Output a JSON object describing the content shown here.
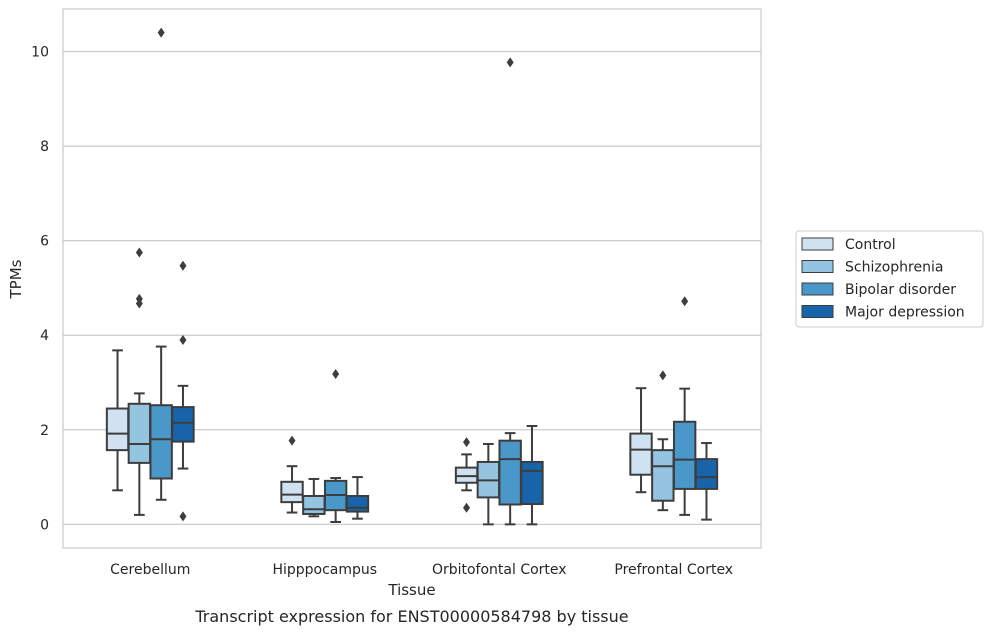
{
  "chart_data": {
    "type": "box",
    "title": "",
    "caption": "Transcript expression for ENST00000584798 by tissue",
    "xlabel": "Tissue",
    "ylabel": "TPMs",
    "ylim": [
      -0.5,
      10.9
    ],
    "yticks": [
      0,
      2,
      4,
      6,
      8,
      10
    ],
    "grid": "horizontal",
    "legend_position": "right",
    "categories": [
      "Cerebellum",
      "Hipppocampus",
      "Orbitofontal Cortex",
      "Prefrontal Cortex"
    ],
    "series": [
      {
        "name": "Control",
        "color": "#d0e1f2",
        "boxes": [
          {
            "whislo": 0.72,
            "q1": 1.57,
            "med": 1.92,
            "q3": 2.45,
            "whishi": 3.68,
            "fliers": []
          },
          {
            "whislo": 0.25,
            "q1": 0.47,
            "med": 0.63,
            "q3": 0.9,
            "whishi": 1.23,
            "fliers": [
              1.77
            ]
          },
          {
            "whislo": 0.72,
            "q1": 0.88,
            "med": 1.02,
            "q3": 1.2,
            "whishi": 1.48,
            "fliers": [
              1.74,
              0.35
            ]
          },
          {
            "whislo": 0.68,
            "q1": 1.05,
            "med": 1.58,
            "q3": 1.92,
            "whishi": 2.88,
            "fliers": []
          }
        ]
      },
      {
        "name": "Schizophrenia",
        "color": "#94c4df",
        "boxes": [
          {
            "whislo": 0.2,
            "q1": 1.3,
            "med": 1.7,
            "q3": 2.55,
            "whishi": 2.77,
            "fliers": [
              5.75,
              4.77,
              4.67
            ]
          },
          {
            "whislo": 0.17,
            "q1": 0.22,
            "med": 0.32,
            "q3": 0.6,
            "whishi": 0.96,
            "fliers": []
          },
          {
            "whislo": 0.0,
            "q1": 0.57,
            "med": 0.93,
            "q3": 1.32,
            "whishi": 1.7,
            "fliers": []
          },
          {
            "whislo": 0.3,
            "q1": 0.5,
            "med": 1.23,
            "q3": 1.57,
            "whishi": 1.8,
            "fliers": [
              3.15
            ]
          }
        ]
      },
      {
        "name": "Bipolar disorder",
        "color": "#4a98c9",
        "boxes": [
          {
            "whislo": 0.52,
            "q1": 0.97,
            "med": 1.8,
            "q3": 2.52,
            "whishi": 3.76,
            "fliers": [
              10.4
            ]
          },
          {
            "whislo": 0.05,
            "q1": 0.3,
            "med": 0.62,
            "q3": 0.92,
            "whishi": 0.98,
            "fliers": [
              3.18
            ]
          },
          {
            "whislo": 0.0,
            "q1": 0.42,
            "med": 1.38,
            "q3": 1.77,
            "whishi": 1.93,
            "fliers": [
              9.77
            ]
          },
          {
            "whislo": 0.2,
            "q1": 0.75,
            "med": 1.37,
            "q3": 2.17,
            "whishi": 2.87,
            "fliers": [
              4.72
            ]
          }
        ]
      },
      {
        "name": "Major depression",
        "color": "#1764ab",
        "boxes": [
          {
            "whislo": 1.18,
            "q1": 1.75,
            "med": 2.15,
            "q3": 2.48,
            "whishi": 2.93,
            "fliers": [
              5.47,
              3.9,
              0.17
            ]
          },
          {
            "whislo": 0.12,
            "q1": 0.27,
            "med": 0.35,
            "q3": 0.6,
            "whishi": 1.0,
            "fliers": []
          },
          {
            "whislo": 0.0,
            "q1": 0.43,
            "med": 1.13,
            "q3": 1.32,
            "whishi": 2.08,
            "fliers": []
          },
          {
            "whislo": 0.1,
            "q1": 0.75,
            "med": 1.0,
            "q3": 1.38,
            "whishi": 1.72,
            "fliers": []
          }
        ]
      }
    ]
  }
}
